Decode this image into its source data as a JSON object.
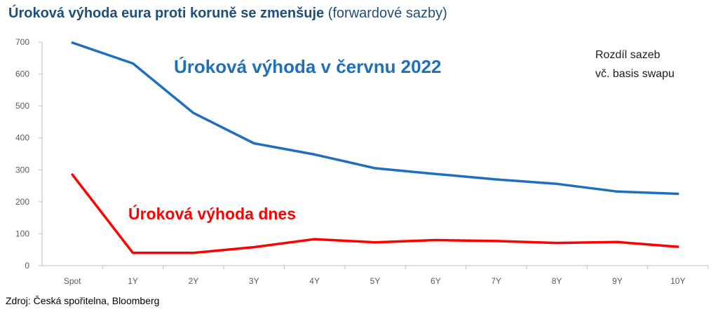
{
  "title": {
    "main": "Úroková výhoda eura proti koruně se zmenšuje",
    "sub": "(forwardové sazby)"
  },
  "source": "Zdroj: Česká spořitelna, Bloomberg",
  "chart_data": {
    "type": "line",
    "categories": [
      "Spot",
      "1Y",
      "2Y",
      "3Y",
      "4Y",
      "5Y",
      "6Y",
      "7Y",
      "8Y",
      "9Y",
      "10Y"
    ],
    "ylim": [
      0,
      700
    ],
    "yticks": [
      0,
      100,
      200,
      300,
      400,
      500,
      600,
      700
    ],
    "grid": false,
    "series": [
      {
        "name": "Úroková výhoda v červnu 2022",
        "color": "#1f6fbf",
        "values": [
          698,
          633,
          478,
          383,
          348,
          305,
          287,
          270,
          256,
          232,
          225
        ]
      },
      {
        "name": "Úroková výhoda dnes",
        "color": "#ff0000",
        "values": [
          285,
          40,
          40,
          58,
          83,
          73,
          80,
          77,
          71,
          74,
          59
        ]
      }
    ],
    "annotation": [
      "Rozdíl sazeb",
      "vč. basis swapu"
    ]
  }
}
